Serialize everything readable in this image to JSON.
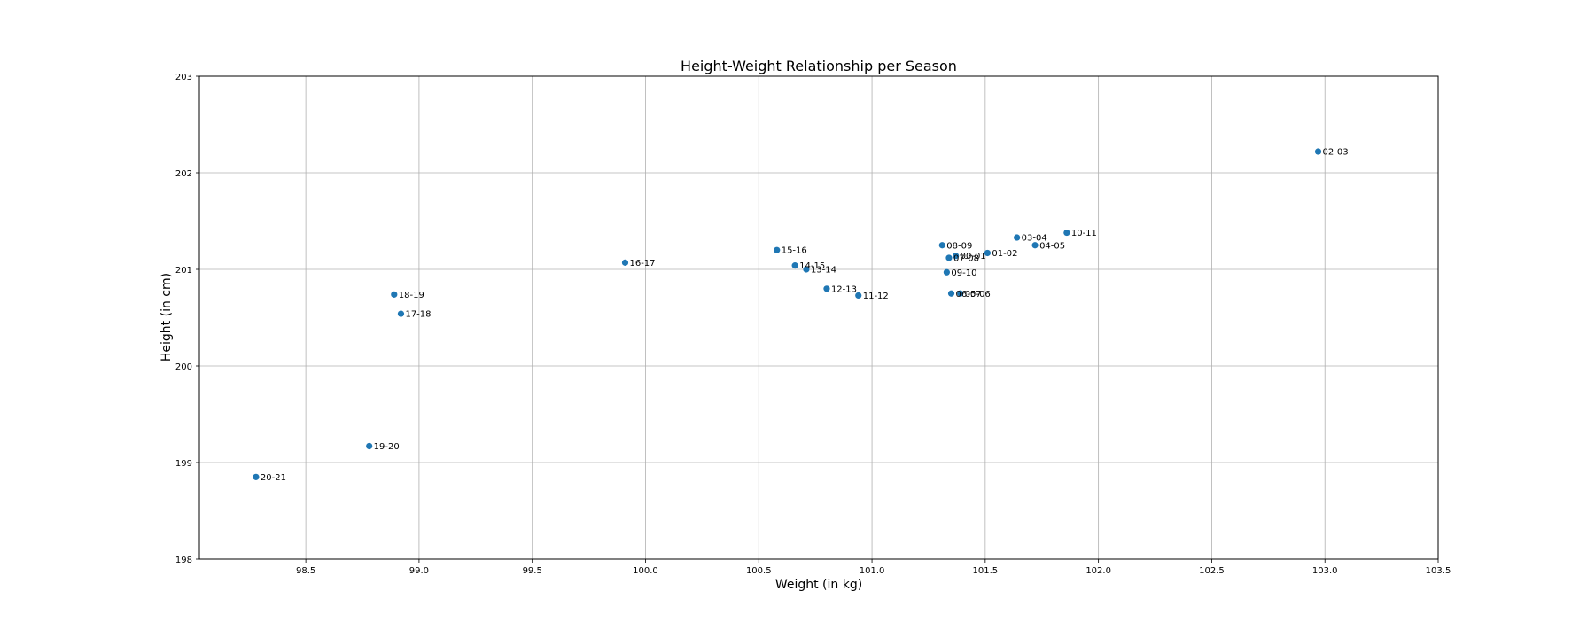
{
  "chart_data": {
    "type": "scatter",
    "title": "Height-Weight Relationship per Season",
    "xlabel": "Weight (in kg)",
    "ylabel": "Height (in cm)",
    "xlim": [
      98.03,
      103.5
    ],
    "ylim": [
      198,
      203
    ],
    "x_ticks": [
      98.5,
      99.0,
      99.5,
      100.0,
      100.5,
      101.0,
      101.5,
      102.0,
      102.5,
      103.0,
      103.5
    ],
    "y_ticks": [
      198,
      199,
      200,
      201,
      202,
      203
    ],
    "x_tick_labels": [
      "98.5",
      "99.0",
      "99.5",
      "100.0",
      "100.5",
      "101.0",
      "101.5",
      "102.0",
      "102.5",
      "103.0",
      "103.5"
    ],
    "y_tick_labels": [
      "198",
      "199",
      "200",
      "201",
      "202",
      "203"
    ],
    "grid": true,
    "marker_color": "#1f77b4",
    "points": [
      {
        "label": "00-01",
        "x": 101.37,
        "y": 201.14
      },
      {
        "label": "01-02",
        "x": 101.51,
        "y": 201.17
      },
      {
        "label": "02-03",
        "x": 102.97,
        "y": 202.22
      },
      {
        "label": "03-04",
        "x": 101.64,
        "y": 201.33
      },
      {
        "label": "04-05",
        "x": 101.72,
        "y": 201.25
      },
      {
        "label": "05-06",
        "x": 101.39,
        "y": 200.75
      },
      {
        "label": "06-07",
        "x": 101.35,
        "y": 200.75
      },
      {
        "label": "07-08",
        "x": 101.34,
        "y": 201.12
      },
      {
        "label": "08-09",
        "x": 101.31,
        "y": 201.25
      },
      {
        "label": "09-10",
        "x": 101.33,
        "y": 200.97
      },
      {
        "label": "10-11",
        "x": 101.86,
        "y": 201.38
      },
      {
        "label": "11-12",
        "x": 100.94,
        "y": 200.73
      },
      {
        "label": "12-13",
        "x": 100.8,
        "y": 200.8
      },
      {
        "label": "13-14",
        "x": 100.71,
        "y": 201.0
      },
      {
        "label": "14-15",
        "x": 100.66,
        "y": 201.04
      },
      {
        "label": "15-16",
        "x": 100.58,
        "y": 201.2
      },
      {
        "label": "16-17",
        "x": 99.91,
        "y": 201.07
      },
      {
        "label": "17-18",
        "x": 98.92,
        "y": 200.54
      },
      {
        "label": "18-19",
        "x": 98.89,
        "y": 200.74
      },
      {
        "label": "19-20",
        "x": 98.78,
        "y": 199.17
      },
      {
        "label": "20-21",
        "x": 98.28,
        "y": 198.85
      }
    ]
  }
}
